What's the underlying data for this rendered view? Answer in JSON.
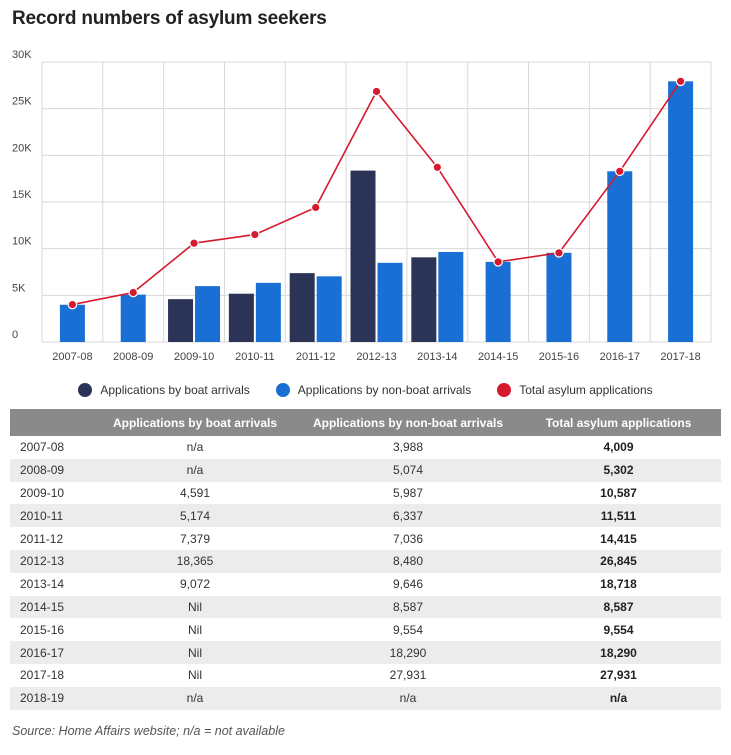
{
  "title": "Record numbers of asylum seekers",
  "colors": {
    "boat": "#2b3357",
    "nonboat": "#1a6fd4",
    "total": "#d7192d",
    "grid": "#d9d9d9"
  },
  "chart_data": {
    "type": "bar",
    "categories": [
      "2007-08",
      "2008-09",
      "2009-10",
      "2010-11",
      "2011-12",
      "2012-13",
      "2013-14",
      "2014-15",
      "2015-16",
      "2016-17",
      "2017-18"
    ],
    "series": [
      {
        "name": "Applications by boat arrivals",
        "kind": "bar",
        "values": [
          null,
          null,
          4591,
          5174,
          7379,
          18365,
          9072,
          0,
          0,
          0,
          0
        ]
      },
      {
        "name": "Applications by non-boat arrivals",
        "kind": "bar",
        "values": [
          3988,
          5074,
          5987,
          6337,
          7036,
          8480,
          9646,
          8587,
          9554,
          18290,
          27931
        ]
      },
      {
        "name": "Total asylum applications",
        "kind": "line",
        "values": [
          4009,
          5302,
          10587,
          11511,
          14415,
          26845,
          18718,
          8587,
          9554,
          18290,
          27931
        ]
      }
    ],
    "ylim": [
      0,
      30000
    ],
    "yticks": [
      0,
      5000,
      10000,
      15000,
      20000,
      25000,
      30000
    ],
    "ytick_labels": [
      "0",
      "5K",
      "10K",
      "15K",
      "20K",
      "25K",
      "30K"
    ],
    "grid": true,
    "legend": "bottom-center"
  },
  "table": {
    "headers": [
      "",
      "Applications by boat arrivals",
      "Applications by non-boat arrivals",
      "Total asylum applications"
    ],
    "rows": [
      [
        "2007-08",
        "n/a",
        "3,988",
        "4,009"
      ],
      [
        "2008-09",
        "n/a",
        "5,074",
        "5,302"
      ],
      [
        "2009-10",
        "4,591",
        "5,987",
        "10,587"
      ],
      [
        "2010-11",
        "5,174",
        "6,337",
        "11,511"
      ],
      [
        "2011-12",
        "7,379",
        "7,036",
        "14,415"
      ],
      [
        "2012-13",
        "18,365",
        "8,480",
        "26,845"
      ],
      [
        "2013-14",
        "9,072",
        "9,646",
        "18,718"
      ],
      [
        "2014-15",
        "Nil",
        "8,587",
        "8,587"
      ],
      [
        "2015-16",
        "Nil",
        "9,554",
        "9,554"
      ],
      [
        "2016-17",
        "Nil",
        "18,290",
        "18,290"
      ],
      [
        "2017-18",
        "Nil",
        "27,931",
        "27,931"
      ],
      [
        "2018-19",
        "n/a",
        "n/a",
        "n/a"
      ]
    ]
  },
  "source": "Source: Home Affairs website; n/a = not available"
}
